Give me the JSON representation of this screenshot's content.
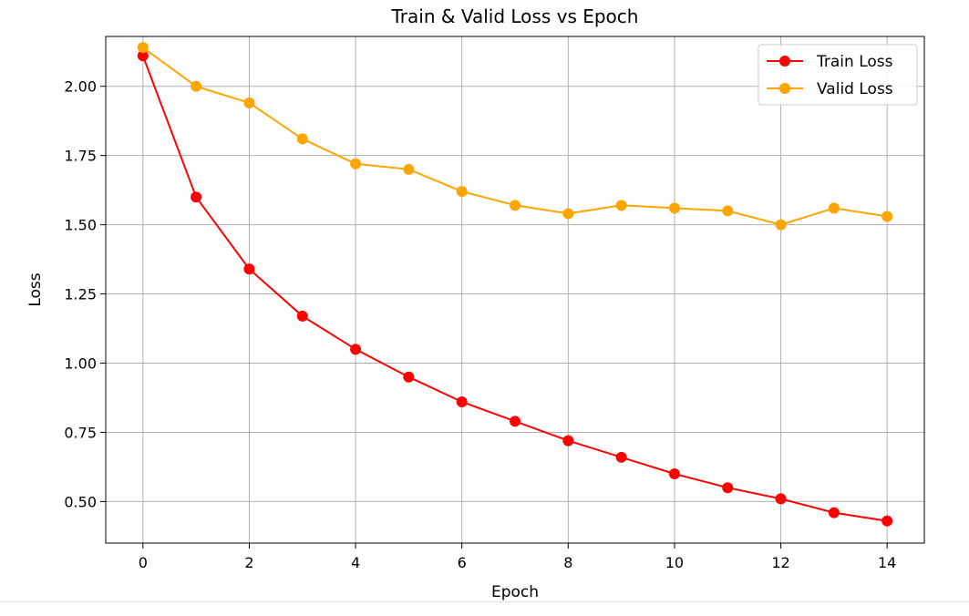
{
  "chart_data": {
    "type": "line",
    "title": "Train & Valid Loss vs Epoch",
    "xlabel": "Epoch",
    "ylabel": "Loss",
    "xlim": [
      -0.7,
      14.7
    ],
    "ylim": [
      0.35,
      2.18
    ],
    "xticks": [
      0,
      2,
      4,
      6,
      8,
      10,
      12,
      14
    ],
    "xtick_labels": [
      "0",
      "2",
      "4",
      "6",
      "8",
      "10",
      "12",
      "14"
    ],
    "yticks": [
      0.5,
      0.75,
      1.0,
      1.25,
      1.5,
      1.75,
      2.0
    ],
    "ytick_labels": [
      "0.50",
      "0.75",
      "1.00",
      "1.25",
      "1.50",
      "1.75",
      "2.00"
    ],
    "grid": true,
    "legend_position": "top-right",
    "x": [
      0,
      1,
      2,
      3,
      4,
      5,
      6,
      7,
      8,
      9,
      10,
      11,
      12,
      13,
      14
    ],
    "series": [
      {
        "name": "Train Loss",
        "color": "#ff0000",
        "marker": "circle",
        "values": [
          2.11,
          1.6,
          1.34,
          1.17,
          1.05,
          0.95,
          0.86,
          0.79,
          0.72,
          0.66,
          0.6,
          0.55,
          0.51,
          0.46,
          0.43
        ]
      },
      {
        "name": "Valid Loss",
        "color": "#ffa500",
        "marker": "circle",
        "values": [
          2.14,
          2.0,
          1.94,
          1.81,
          1.72,
          1.7,
          1.62,
          1.57,
          1.54,
          1.57,
          1.56,
          1.55,
          1.5,
          1.56,
          1.53
        ]
      }
    ]
  }
}
